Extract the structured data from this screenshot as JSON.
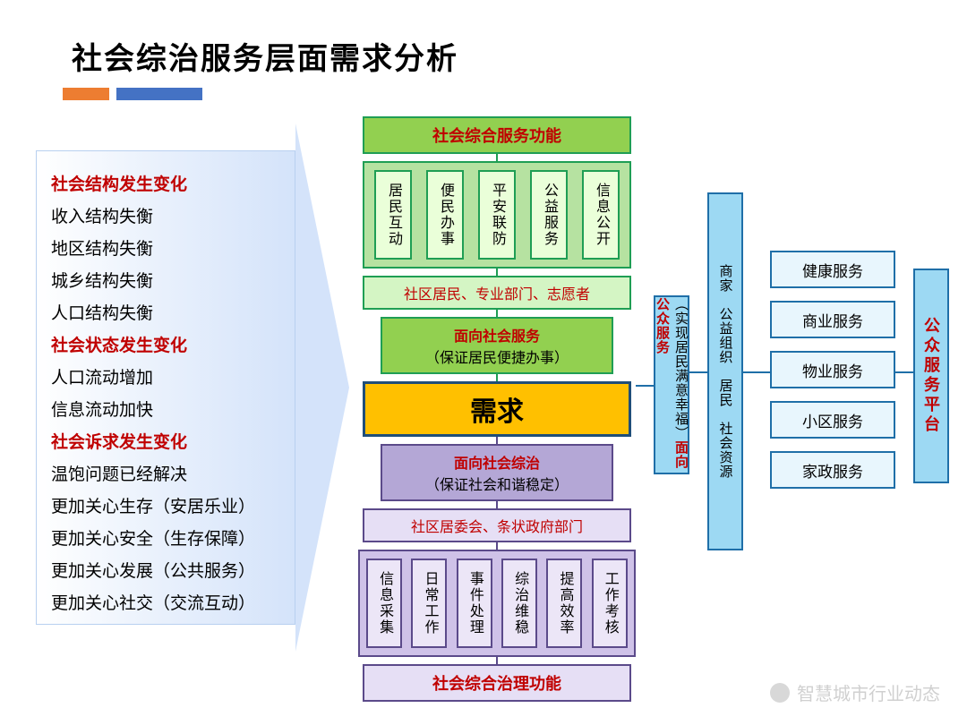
{
  "title": "社会综治服务层面需求分析",
  "bars": {
    "color1": "#ed7d31",
    "color2": "#4472c4"
  },
  "arrow_list": [
    {
      "text": "社会结构发生变化",
      "red": true
    },
    {
      "text": "收入结构失衡",
      "red": false
    },
    {
      "text": "地区结构失衡",
      "red": false
    },
    {
      "text": "城乡结构失衡",
      "red": false
    },
    {
      "text": "人口结构失衡",
      "red": false
    },
    {
      "text": "社会状态发生变化",
      "red": true
    },
    {
      "text": "人口流动增加",
      "red": false
    },
    {
      "text": "信息流动加快",
      "red": false
    },
    {
      "text": "社会诉求发生变化",
      "red": true
    },
    {
      "text": "温饱问题已经解决",
      "red": false
    },
    {
      "text": "更加关心生存（安居乐业）",
      "red": false
    },
    {
      "text": "更加关心安全（生存保障）",
      "red": false
    },
    {
      "text": "更加关心发展（公共服务）",
      "red": false
    },
    {
      "text": "更加关心社交（交流互动）",
      "red": false
    }
  ],
  "center": {
    "top_header": "社会综合服务功能",
    "green_items": [
      "居民互动",
      "便民办事",
      "平安联防",
      "公益服务",
      "信息公开"
    ],
    "green_strip": "社区居民、专业部门、志愿者",
    "green_service_title": "面向社会服务",
    "green_service_sub": "（保证居民便捷办事）",
    "demand": "需求",
    "purple_service_title": "面向社会综治",
    "purple_service_sub": "（保证社会和谐稳定）",
    "purple_strip": "社区居委会、条状政府部门",
    "purple_items": [
      "信息采集",
      "日常工作",
      "事件处理",
      "综治维稳",
      "提高效率",
      "工作考核"
    ],
    "bottom_footer": "社会综合治理功能"
  },
  "right": {
    "vert1_title": "面向公众服务",
    "vert1_sub": "（实现居民满意幸福）",
    "vert2": "商家　公益组织　居民　社会资源",
    "services": [
      "健康服务",
      "商业服务",
      "物业服务",
      "小区服务",
      "家政服务"
    ],
    "vert3": "公众服务平台"
  },
  "colors": {
    "green_border": "#1f9e54",
    "green_fill": "#92d050",
    "green_light": "#d4f5c4",
    "purple_border": "#5b4a8a",
    "purple_fill": "#b4a7d6",
    "purple_light": "#e6dff5",
    "blue_border": "#1f6fa8",
    "blue_fill": "#9dd9f3",
    "blue_light": "#e8f6fd",
    "orange": "#ffc000",
    "red_text": "#c00000"
  },
  "watermark": "智慧城市行业动态"
}
